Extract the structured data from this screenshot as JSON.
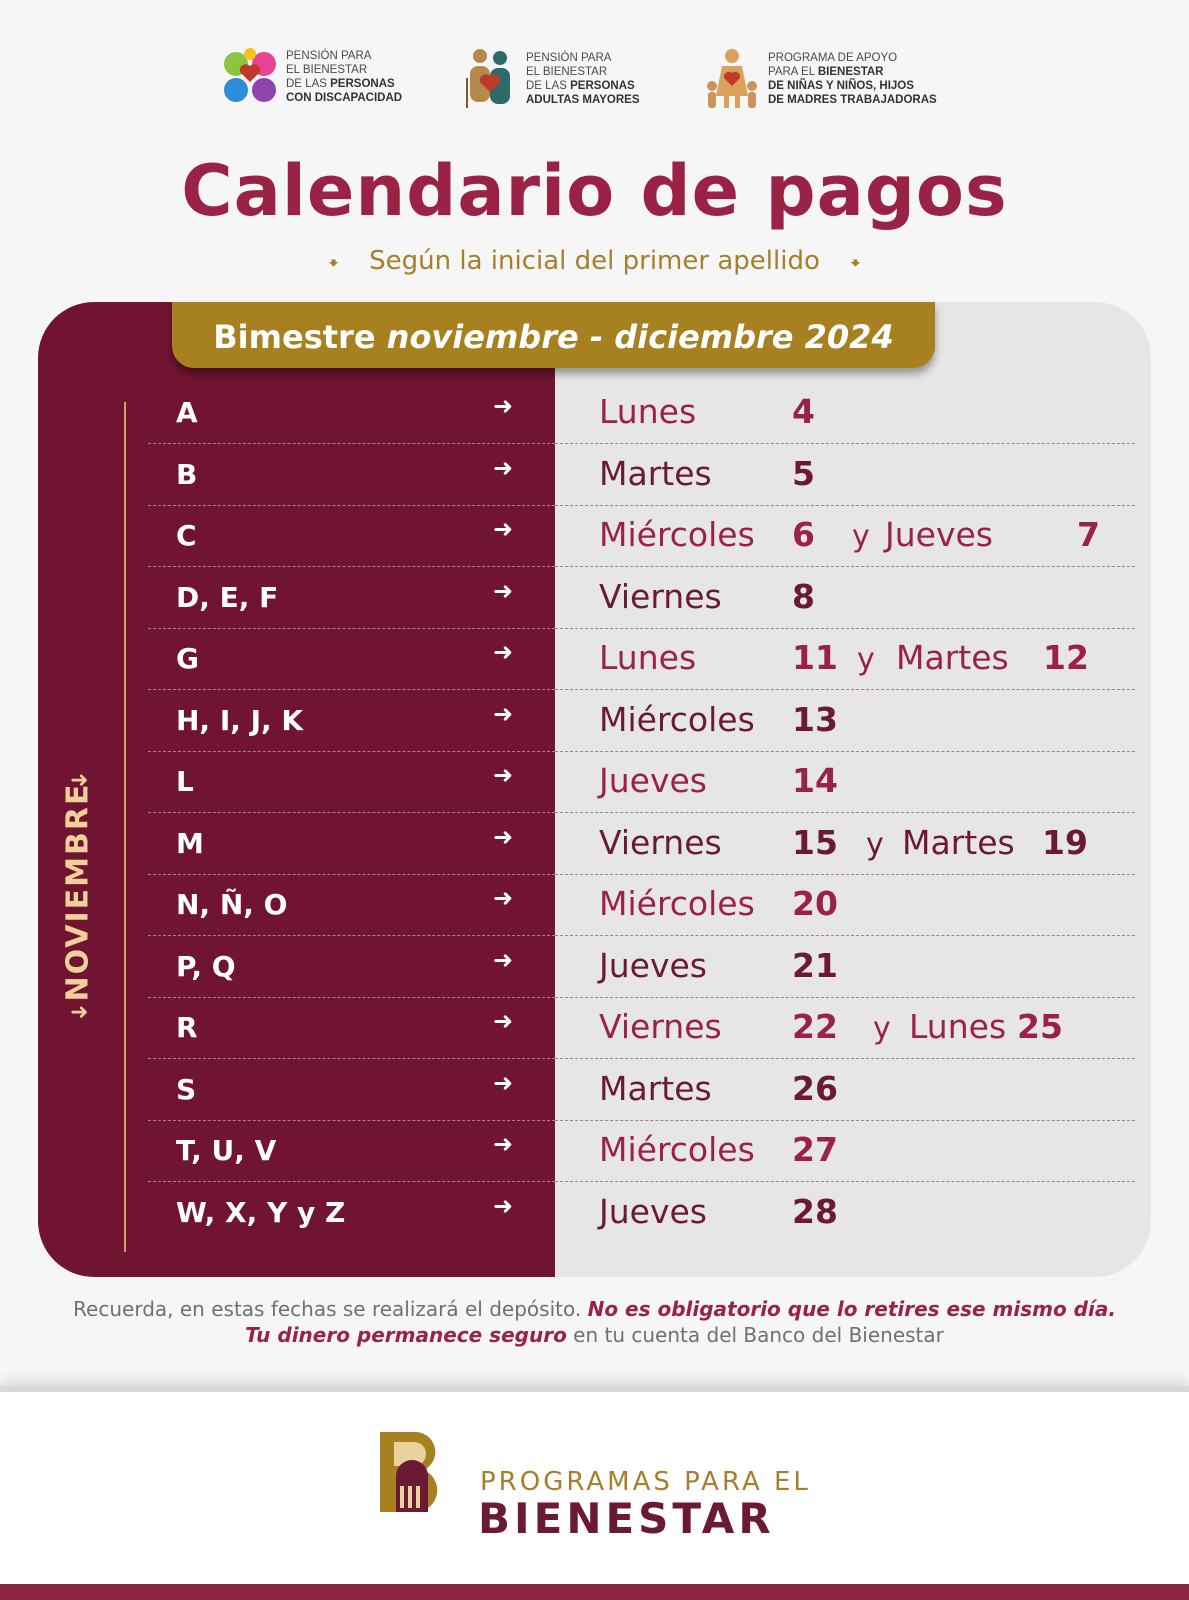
{
  "programs": [
    {
      "line1": "PENSIÓN PARA",
      "line2": "EL BIENESTAR",
      "line3": "DE LAS",
      "line3b": "PERSONAS",
      "line4": "CON DISCAPACIDAD"
    },
    {
      "line1": "PENSIÓN PARA",
      "line2": "EL BIENESTAR",
      "line3": "DE LAS",
      "line3b": "PERSONAS",
      "line4": "ADULTAS MAYORES"
    },
    {
      "line1": "PROGRAMA DE APOYO",
      "line2a": "PARA EL",
      "line2b": "BIENESTAR",
      "line3": "DE NIÑAS Y NIÑOS, HIJOS",
      "line4": "DE MADRES TRABAJADORAS"
    }
  ],
  "title": "Calendario de pagos",
  "subtitle": "Según la inicial del primer apellido",
  "banner": {
    "prefix": "Bimestre",
    "period": "noviembre - diciembre 2024"
  },
  "month": "NOVIEMBRE",
  "rows": [
    {
      "letters": "A",
      "day1": "Lunes",
      "num1": "4",
      "y": "",
      "day2": "",
      "num2": ""
    },
    {
      "letters": "B",
      "day1": "Martes",
      "num1": "5",
      "y": "",
      "day2": "",
      "num2": ""
    },
    {
      "letters": "C",
      "day1": "Miércoles",
      "num1": "6",
      "y": "y",
      "day2": "Jueves",
      "num2": "7"
    },
    {
      "letters": "D, E, F",
      "day1": "Viernes",
      "num1": "8",
      "y": "",
      "day2": "",
      "num2": ""
    },
    {
      "letters": "G",
      "day1": "Lunes",
      "num1": "11",
      "y": "y",
      "day2": "Martes",
      "num2": "12"
    },
    {
      "letters": "H, I, J, K",
      "day1": "Miércoles",
      "num1": "13",
      "y": "",
      "day2": "",
      "num2": ""
    },
    {
      "letters": "L",
      "day1": "Jueves",
      "num1": "14",
      "y": "",
      "day2": "",
      "num2": ""
    },
    {
      "letters": "M",
      "day1": "Viernes",
      "num1": "15",
      "y": "y",
      "day2": "Martes",
      "num2": "19"
    },
    {
      "letters": "N, Ñ, O",
      "day1": "Miércoles",
      "num1": "20",
      "y": "",
      "day2": "",
      "num2": ""
    },
    {
      "letters": "P, Q",
      "day1": "Jueves",
      "num1": "21",
      "y": "",
      "day2": "",
      "num2": ""
    },
    {
      "letters": "R",
      "day1": "Viernes",
      "num1": "22",
      "y": "y",
      "day2": "Lunes",
      "num2": "25"
    },
    {
      "letters": "S",
      "day1": "Martes",
      "num1": "26",
      "y": "",
      "day2": "",
      "num2": ""
    },
    {
      "letters": "T, U, V",
      "day1": "Miércoles",
      "num1": "27",
      "y": "",
      "day2": "",
      "num2": ""
    },
    {
      "letters": "W, X, Y y Z",
      "day1": "Jueves",
      "num1": "28",
      "y": "",
      "day2": "",
      "num2": ""
    }
  ],
  "note": {
    "part1": "Recuerda, en estas fechas se realizará el depósito.",
    "part2": "No es obligatorio que lo retires ese mismo día.",
    "part3": "Tu dinero permanece seguro",
    "part4": "en tu cuenta del Banco del Bienestar"
  },
  "brand": {
    "line1": "PROGRAMAS PARA EL",
    "line2": "BIENESTAR"
  },
  "colors": {
    "primary": "#9b2247",
    "dark": "#711432",
    "gold": "#a7801f",
    "light": "#e6e6e6"
  }
}
